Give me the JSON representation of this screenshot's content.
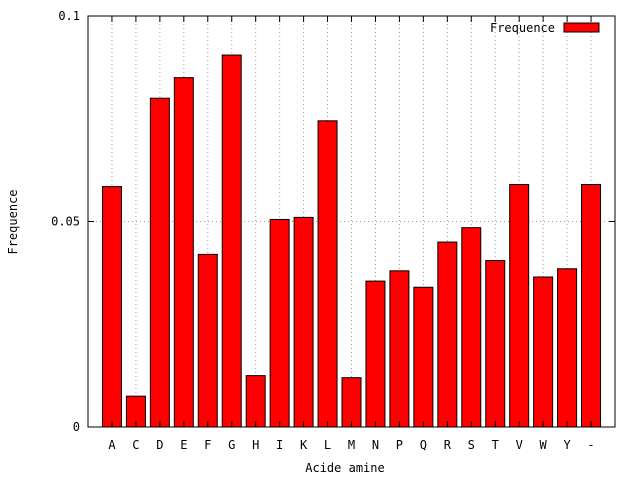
{
  "chart_data": {
    "type": "bar",
    "categories": [
      "A",
      "C",
      "D",
      "E",
      "F",
      "G",
      "H",
      "I",
      "K",
      "L",
      "M",
      "N",
      "P",
      "Q",
      "R",
      "S",
      "T",
      "V",
      "W",
      "Y",
      "-"
    ],
    "series": [
      {
        "name": "Frequence",
        "color": "#ff0000",
        "values": [
          0.0585,
          0.0075,
          0.08,
          0.085,
          0.042,
          0.0905,
          0.0125,
          0.0505,
          0.051,
          0.0745,
          0.012,
          0.0355,
          0.038,
          0.034,
          0.045,
          0.0485,
          0.0405,
          0.059,
          0.0365,
          0.0385,
          0.059
        ]
      }
    ],
    "xlabel": "Acide amine",
    "ylabel": "Frequence",
    "ylim": [
      0,
      0.1
    ],
    "yticks": [
      0,
      0.05,
      0.1
    ],
    "ytick_labels": [
      "0",
      "0.05",
      "0.1"
    ],
    "grid": true,
    "legend_position": "top-right"
  }
}
